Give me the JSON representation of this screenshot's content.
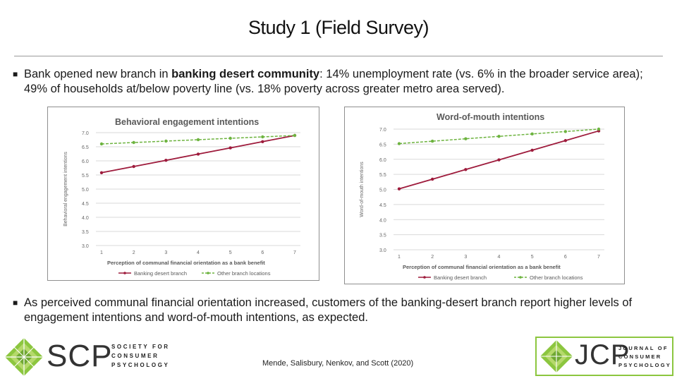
{
  "slide": {
    "title": "Study 1 (Field Survey)",
    "bullet1": {
      "pre": "Bank opened new branch in ",
      "bold": "banking desert community",
      "post": ": 14% unemployment rate (vs. 6% in the broader service area); 49% of households at/below poverty line (vs. 18% poverty across greater metro area served)."
    },
    "bullet2": "As perceived communal financial orientation increased, customers of the banking-desert branch report higher levels of engagement intentions and word-of-mouth intentions, as expected.",
    "citation": "Mende, Salisbury, Nenkov, and Scott (2020)",
    "logo_left": {
      "big": "SCP",
      "lines": [
        "SOCIETY FOR",
        "CONSUMER",
        "PSYCHOLOGY"
      ]
    },
    "logo_right": {
      "big": "JCP",
      "lines": [
        "JOURNAL OF",
        "CONSUMER",
        "PSYCHOLOGY"
      ]
    }
  },
  "colors": {
    "series1": "#9e1b3c",
    "series2": "#6db33f",
    "grid": "#d9d9d9",
    "title_text": "#595959"
  },
  "chart_data": [
    {
      "type": "line",
      "title": "Behavioral engagement intentions",
      "xlabel": "Perception of communal financial orientation as a bank benefit",
      "ylabel": "Behavioral engagement intentions",
      "x": [
        "1",
        "2",
        "3",
        "4",
        "5",
        "6",
        "7"
      ],
      "yticks": [
        "3.0",
        "3.5",
        "4.0",
        "4.5",
        "5.0",
        "5.5",
        "6.0",
        "6.5",
        "7.0"
      ],
      "ylim": [
        3.0,
        7.0
      ],
      "grid": true,
      "legend_position": "bottom",
      "series": [
        {
          "name": "Banking desert branch",
          "values": [
            5.58,
            5.8,
            6.02,
            6.24,
            6.46,
            6.68,
            6.9
          ]
        },
        {
          "name": "Other branch locations",
          "values": [
            6.6,
            6.65,
            6.7,
            6.75,
            6.8,
            6.85,
            6.9
          ]
        }
      ]
    },
    {
      "type": "line",
      "title": "Word-of-mouth intentions",
      "xlabel": "Perception of communal financial orientation as a bank benefit",
      "ylabel": "Word-of-mouth intentions",
      "x": [
        "1",
        "2",
        "3",
        "4",
        "5",
        "6",
        "7"
      ],
      "yticks": [
        "3.0",
        "3.5",
        "4.0",
        "4.5",
        "5.0",
        "5.5",
        "6.0",
        "6.5",
        "7.0"
      ],
      "ylim": [
        3.0,
        7.0
      ],
      "grid": true,
      "legend_position": "bottom",
      "series": [
        {
          "name": "Banking desert branch",
          "values": [
            5.02,
            5.34,
            5.66,
            5.98,
            6.3,
            6.62,
            6.94
          ]
        },
        {
          "name": "Other branch locations",
          "values": [
            6.52,
            6.6,
            6.68,
            6.76,
            6.84,
            6.92,
            7.0
          ]
        }
      ]
    }
  ]
}
